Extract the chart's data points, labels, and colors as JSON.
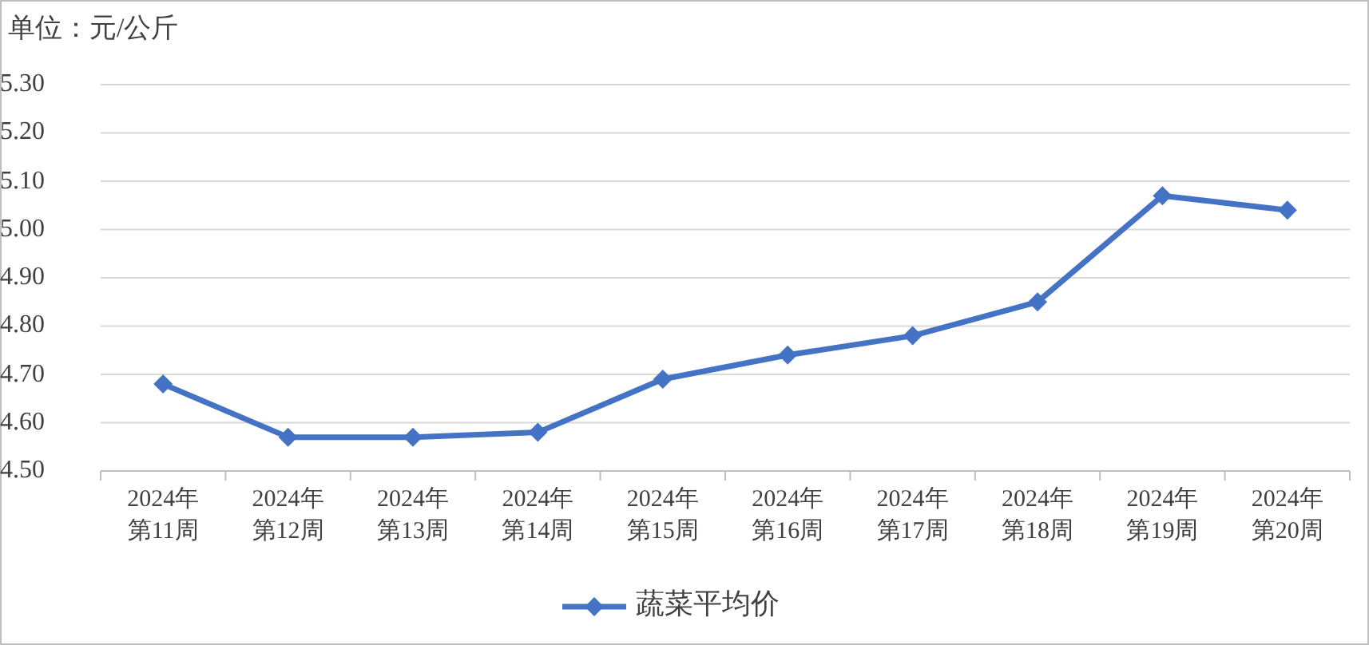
{
  "chart_data": {
    "type": "line",
    "subtitle": "单位：元/公斤",
    "categories": [
      "2024年第11周",
      "2024年第12周",
      "2024年第13周",
      "2024年第14周",
      "2024年第15周",
      "2024年第16周",
      "2024年第17周",
      "2024年第18周",
      "2024年第19周",
      "2024年第20周"
    ],
    "series": [
      {
        "name": "蔬菜平均价",
        "color": "#4472c4",
        "values": [
          4.68,
          4.57,
          4.57,
          4.58,
          4.69,
          4.74,
          4.78,
          4.85,
          5.07,
          5.04
        ]
      }
    ],
    "ylim": [
      4.5,
      5.3
    ],
    "yticks": [
      {
        "value": 4.5,
        "label": "4.50"
      },
      {
        "value": 4.6,
        "label": "4.60"
      },
      {
        "value": 4.7,
        "label": "4.70"
      },
      {
        "value": 4.8,
        "label": "4.80"
      },
      {
        "value": 4.9,
        "label": "4.90"
      },
      {
        "value": 5.0,
        "label": "5.00"
      },
      {
        "value": 5.1,
        "label": "5.10"
      },
      {
        "value": 5.2,
        "label": "5.20"
      },
      {
        "value": 5.3,
        "label": "5.30"
      }
    ],
    "grid": "y",
    "legend": "bottom",
    "marker": "diamond",
    "line_style": "solid"
  }
}
